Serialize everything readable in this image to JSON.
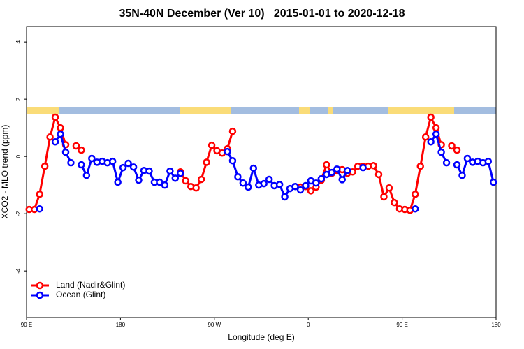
{
  "chart_data": {
    "type": "line",
    "title": "35N-40N December (Ver 10)   2015-01-01 to 2020-12-18",
    "x_label": "Longitude (deg E)",
    "y_label": "XCO2 - MLO trend (ppm)",
    "x": [
      92.5,
      97.5,
      102.5,
      107.5,
      112.5,
      117.5,
      122.5,
      127.5,
      132.5,
      137.5,
      142.5,
      147.5,
      152.5,
      157.5,
      162.5,
      167.5,
      172.5,
      177.5,
      182.5,
      187.5,
      192.5,
      197.5,
      202.5,
      207.5,
      212.5,
      217.5,
      222.5,
      227.5,
      232.5,
      237.5,
      242.5,
      247.5,
      252.5,
      257.5,
      262.5,
      267.5,
      272.5,
      277.5,
      282.5,
      287.5,
      292.5,
      297.5,
      302.5,
      307.5,
      312.5,
      317.5,
      322.5,
      327.5,
      332.5,
      337.5,
      342.5,
      347.5,
      352.5,
      357.5,
      362.5,
      367.5,
      372.5,
      377.5,
      382.5,
      387.5,
      392.5,
      397.5,
      402.5,
      407.5,
      412.5,
      417.5,
      422.5,
      427.5,
      432.5,
      437.5,
      442.5,
      447.5,
      452.5,
      457.5,
      462.5,
      467.5,
      472.5,
      477.5,
      482.5,
      487.5,
      492.5,
      497.5,
      502.5,
      507.5,
      512.5,
      517.5,
      522.5,
      527.5,
      532.5,
      537.5
    ],
    "series": [
      {
        "name": "Land (Nadir&Glint)",
        "color": "#ff0000",
        "values": [
          -1.85,
          -1.85,
          -1.32,
          -0.34,
          0.68,
          1.37,
          1.0,
          0.41,
          null,
          0.37,
          0.22,
          null,
          null,
          null,
          null,
          null,
          null,
          null,
          null,
          null,
          null,
          null,
          null,
          null,
          null,
          null,
          null,
          null,
          null,
          -0.54,
          -0.85,
          -1.05,
          -1.1,
          -0.8,
          -0.2,
          0.39,
          0.2,
          0.12,
          0.27,
          0.88,
          null,
          null,
          null,
          null,
          null,
          null,
          null,
          null,
          null,
          null,
          null,
          null,
          -1.07,
          -1.05,
          -1.2,
          -1.07,
          -0.83,
          -0.29,
          -0.59,
          -0.49,
          -0.46,
          -0.59,
          -0.54,
          -0.34,
          -0.34,
          -0.34,
          -0.32,
          -0.63,
          -1.41,
          -1.1,
          -1.61,
          -1.83,
          -1.85,
          -1.88,
          -1.32,
          -0.34,
          0.68,
          1.37,
          1.0,
          0.41,
          null,
          0.37,
          0.22,
          null,
          null,
          null,
          null,
          null,
          null,
          null
        ]
      },
      {
        "name": "Ocean (Glint)",
        "color": "#0000ff",
        "values": [
          null,
          null,
          -1.83,
          null,
          null,
          0.51,
          0.78,
          0.15,
          -0.22,
          null,
          -0.29,
          -0.66,
          -0.07,
          -0.2,
          -0.17,
          -0.22,
          -0.17,
          -0.9,
          -0.39,
          -0.24,
          -0.37,
          -0.83,
          -0.49,
          -0.51,
          -0.9,
          -0.9,
          -1.0,
          -0.51,
          -0.76,
          -0.59,
          null,
          null,
          null,
          null,
          null,
          null,
          null,
          null,
          0.17,
          -0.15,
          -0.71,
          -0.93,
          -1.07,
          -0.41,
          -1.0,
          -0.95,
          -0.8,
          -1.02,
          -0.98,
          -1.41,
          -1.12,
          -1.05,
          -1.17,
          -1.02,
          -0.85,
          -0.93,
          -0.78,
          -0.63,
          -0.56,
          -0.44,
          -0.81,
          -0.49,
          null,
          null,
          -0.39,
          null,
          null,
          null,
          null,
          null,
          null,
          null,
          null,
          null,
          -1.83,
          null,
          null,
          0.51,
          0.78,
          0.15,
          -0.22,
          null,
          -0.29,
          -0.66,
          -0.07,
          -0.2,
          -0.17,
          -0.22,
          -0.17,
          -0.9
        ]
      }
    ],
    "xlim": [
      90,
      540
    ],
    "xticks": [
      {
        "value": 90,
        "label": "90 E"
      },
      {
        "value": 180,
        "label": "180"
      },
      {
        "value": 270,
        "label": "90 W"
      },
      {
        "value": 360,
        "label": "0"
      },
      {
        "value": 450,
        "label": "90 E"
      },
      {
        "value": 540,
        "label": "180"
      }
    ],
    "ylim": [
      -5.63,
      4.54
    ],
    "yticks": [
      4,
      2,
      0,
      -2,
      -4
    ],
    "grid": false,
    "legend": "bottomleft"
  }
}
